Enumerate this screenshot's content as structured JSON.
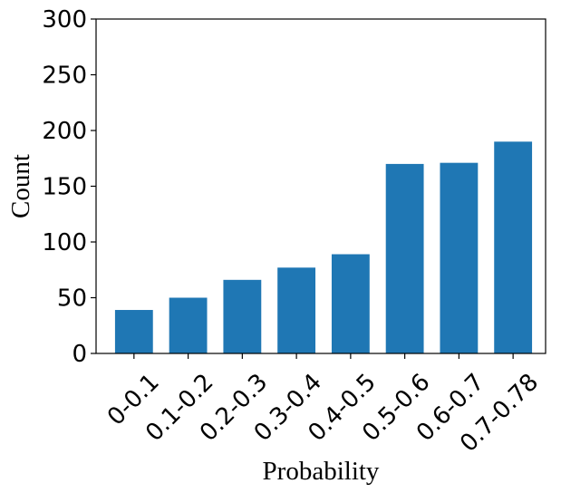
{
  "chart_data": {
    "type": "bar",
    "categories": [
      "0-0.1",
      "0.1-0.2",
      "0.2-0.3",
      "0.3-0.4",
      "0.4-0.5",
      "0.5-0.6",
      "0.6-0.7",
      "0.7-0.78"
    ],
    "values": [
      39,
      50,
      66,
      77,
      89,
      170,
      171,
      190
    ],
    "title": "",
    "xlabel": "Probability",
    "ylabel": "Count",
    "ylim": [
      0,
      300
    ],
    "yticks": [
      0,
      50,
      100,
      150,
      200,
      250,
      300
    ],
    "grid": false,
    "bar_color": "#1f77b4"
  }
}
